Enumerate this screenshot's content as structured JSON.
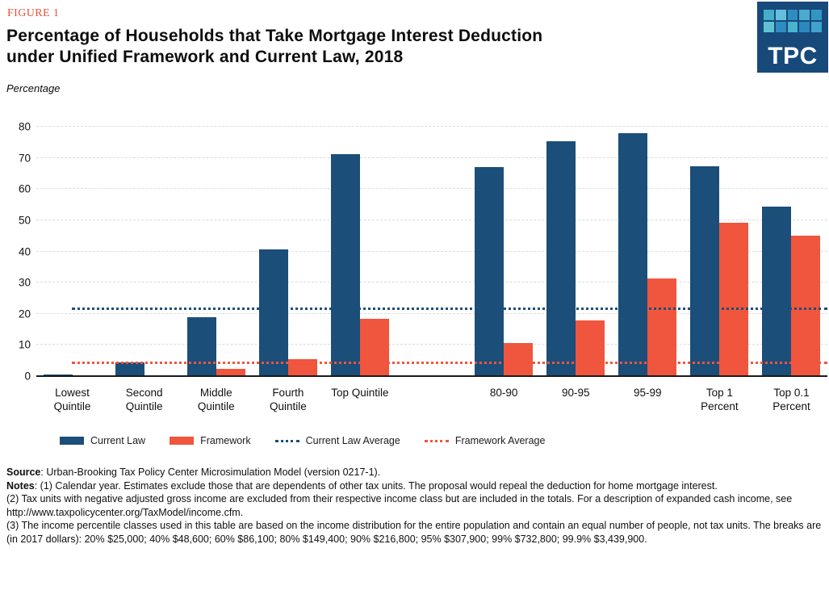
{
  "figure_label": "FIGURE 1",
  "title": "Percentage of Households that Take Mortgage Interest Deduction\nunder Unified Framework and Current Law, 2018",
  "unit_label": "Percentage",
  "logo": {
    "text": "TPC",
    "bg_color": "#17497B",
    "square_colors": [
      "#45AECB",
      "#63BFDC",
      "#2E8CC0",
      "#4AAAD0",
      "#3396C2",
      "#5FC2D3",
      "#2E8CC0",
      "#49B4CB",
      "#2C88BE",
      "#3FA3CC"
    ]
  },
  "chart_data": {
    "type": "bar",
    "title": "Percentage of Households that Take Mortgage Interest Deduction under Unified Framework and Current Law, 2018",
    "xlabel": "",
    "ylabel": "Percentage",
    "ylim": [
      0,
      80
    ],
    "yticks": [
      0,
      10,
      20,
      30,
      40,
      50,
      60,
      70,
      80
    ],
    "grid": true,
    "legend_position": "bottom",
    "categories": [
      "Lowest\nQuintile",
      "Second\nQuintile",
      "Middle\nQuintile",
      "Fourth\nQuintile",
      "Top Quintile",
      "80-90",
      "90-95",
      "95-99",
      "Top 1\nPercent",
      "Top 0.1\nPercent"
    ],
    "gap_after_index": 4,
    "series": [
      {
        "name": "Current Law",
        "color": "#1B4E79",
        "values": [
          0.5,
          4.5,
          18.8,
          40.6,
          71.1,
          67.0,
          75.3,
          78.0,
          67.2,
          54.5
        ]
      },
      {
        "name": "Framework",
        "color": "#F0553D",
        "values": [
          0.3,
          0.3,
          2.3,
          5.4,
          18.5,
          10.7,
          17.9,
          31.3,
          49.2,
          45.0
        ]
      }
    ],
    "reference_lines": [
      {
        "name": "Current Law Average",
        "value": 21.2,
        "color": "#1B4E79"
      },
      {
        "name": "Framework Average",
        "value": 4.0,
        "color": "#F0553D"
      }
    ]
  },
  "legend": {
    "items": [
      {
        "label": "Current Law",
        "swatch": "solid",
        "color": "#1B4E79"
      },
      {
        "label": "Framework",
        "swatch": "solid",
        "color": "#F0553D"
      },
      {
        "label": "Current Law Average",
        "swatch": "dotted",
        "color": "#1B4E79"
      },
      {
        "label": "Framework Average",
        "swatch": "dotted",
        "color": "#F0553D"
      }
    ]
  },
  "footer": {
    "source_label": "Source",
    "source_text": ": Urban-Brooking Tax Policy Center Microsimulation Model (version 0217-1).",
    "notes_label": "Notes",
    "notes_line1": ": (1) Calendar year. Estimates exclude those that are dependents of other tax units. The proposal would repeal the deduction for home mortgage interest.",
    "notes_line2": "(2) Tax units with negative adjusted gross income are excluded from their respective income class but are included in the totals. For a description of expanded cash income, see http://www.taxpolicycenter.org/TaxModel/income.cfm.",
    "notes_line3": "(3) The income percentile classes used in this table are based on the income distribution for the entire population and contain an equal number of people, not tax units. The breaks are (in 2017 dollars): 20% $25,000; 40% $48,600; 60% $86,100; 80% $149,400; 90% $216,800; 95% $307,900; 99% $732,800; 99.9% $3,439,900."
  }
}
